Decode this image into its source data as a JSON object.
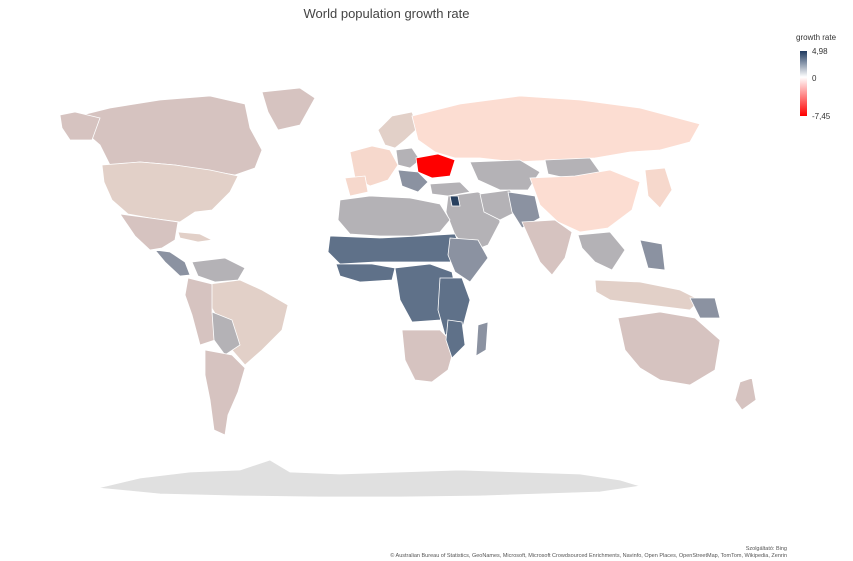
{
  "title": "World population growth rate",
  "legend": {
    "title": "growth rate",
    "max_label": "4,98",
    "mid_label": "0",
    "min_label": "-7,45",
    "max_value": 4.98,
    "min_value": -7.45,
    "colors": {
      "max": "#1f3a5f",
      "mid": "#ffffff",
      "min": "#ff0000"
    }
  },
  "credits": {
    "provider": "Szolgáltató: Bing",
    "sources": "© Australian Bureau of Statistics, GeoNames, Microsoft, Microsoft Crowdsourced Enrichments, Navinfo, Open Places, OpenStreetMap, TomTom, Wikipedia, Zenrin"
  },
  "colors": {
    "antarctica": "#e0e0e0",
    "highlight_ukraine": "#ff0000",
    "darkest": "#28405f",
    "high_growth": "#5f7189",
    "mid_growth": "#8b92a1",
    "low_growth": "#b4b2b6",
    "near_zero": "#d6c3c0",
    "low_positive": "#e2d0c8",
    "slight_negative": "#f6d8cc",
    "negative": "#fcddd2"
  }
}
